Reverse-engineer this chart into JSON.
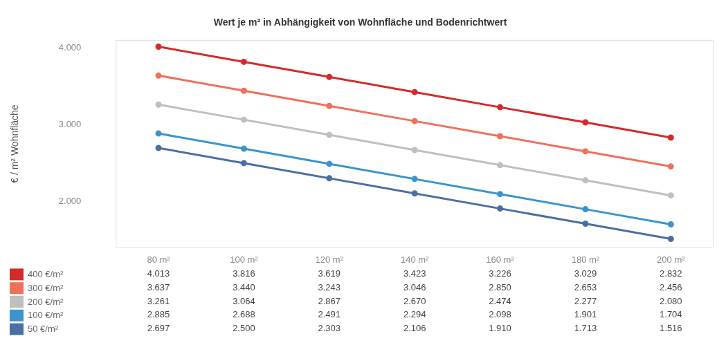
{
  "chart_data": {
    "type": "line",
    "title": "Wert je m² in Abhängigkeit von Wohnfläche und Bodenrichtwert",
    "ylabel": "€ / m² Wohnfläche",
    "categories": [
      "80 m²",
      "100 m²",
      "120 m²",
      "140 m²",
      "160 m²",
      "180 m²",
      "200 m²"
    ],
    "series": [
      {
        "name": "400 €/m²",
        "color": "#d42a2a",
        "values": [
          4013,
          3816,
          3619,
          3423,
          3226,
          3029,
          2832
        ],
        "value_labels": [
          "4.013",
          "3.816",
          "3.619",
          "3.423",
          "3.226",
          "3.029",
          "2.832"
        ]
      },
      {
        "name": "300 €/m²",
        "color": "#f0705a",
        "values": [
          3637,
          3440,
          3243,
          3046,
          2850,
          2653,
          2456
        ],
        "value_labels": [
          "3.637",
          "3.440",
          "3.243",
          "3.046",
          "2.850",
          "2.653",
          "2.456"
        ]
      },
      {
        "name": "200 €/m²",
        "color": "#bfbfbf",
        "values": [
          3261,
          3064,
          2867,
          2670,
          2474,
          2277,
          2080
        ],
        "value_labels": [
          "3.261",
          "3.064",
          "2.867",
          "2.670",
          "2.474",
          "2.277",
          "2.080"
        ]
      },
      {
        "name": "100 €/m²",
        "color": "#3b94cc",
        "values": [
          2885,
          2688,
          2491,
          2294,
          2098,
          1901,
          1704
        ],
        "value_labels": [
          "2.885",
          "2.688",
          "2.491",
          "2.294",
          "2.098",
          "1.901",
          "1.704"
        ]
      },
      {
        "name": "50 €/m²",
        "color": "#4a6fa5",
        "values": [
          2697,
          2500,
          2303,
          2106,
          1910,
          1713,
          1516
        ],
        "value_labels": [
          "2.697",
          "2.500",
          "2.303",
          "2.106",
          "1.910",
          "1.713",
          "1.516"
        ]
      }
    ],
    "ylim": [
      1400,
      4100
    ],
    "yticks": [
      {
        "value": 2000,
        "label": "2.000"
      },
      {
        "value": 3000,
        "label": "3.000"
      },
      {
        "value": 4000,
        "label": "4.000"
      }
    ],
    "grid": false,
    "legend": "bottom",
    "marker": "circle",
    "line_style": "solid"
  }
}
